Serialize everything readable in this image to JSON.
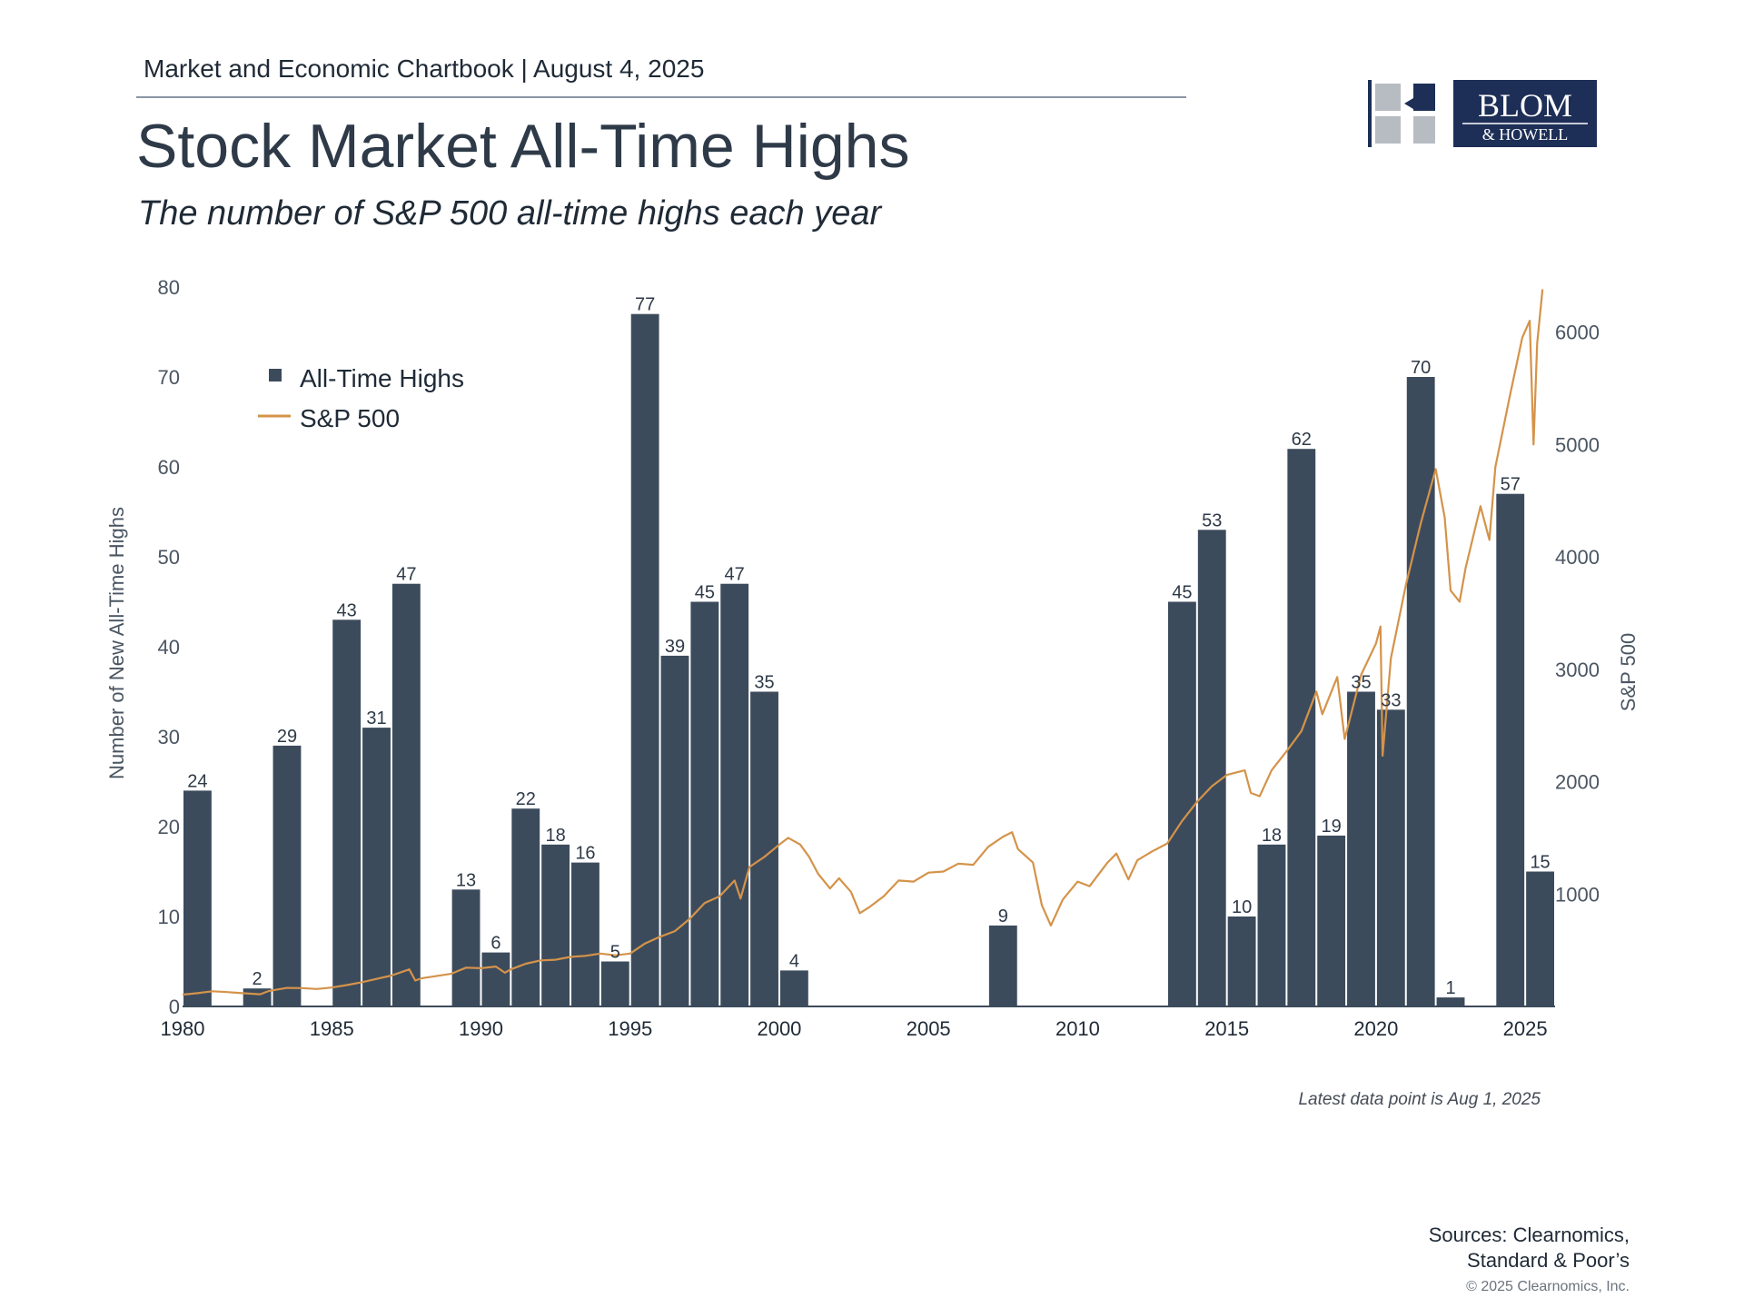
{
  "header": {
    "kicker": "Market and Economic Chartbook | August 4, 2025",
    "title": "Stock Market All-Time Highs",
    "subtitle": "The number of S&P 500 all-time highs each year"
  },
  "logo": {
    "line1": "BLOM",
    "line2": "& HOWELL",
    "navy": "#1d2f57",
    "gray": "#b7bcc2"
  },
  "colors": {
    "bars": "#3c4b5c",
    "line": "#d4934a",
    "axis_text": "#4a5562"
  },
  "chart_data": {
    "type": "bar",
    "legend": {
      "placement": "top-left",
      "entries": [
        "All-Time Highs",
        "S&P 500"
      ]
    },
    "y_left": {
      "label": "Number of New All-Time Highs",
      "range": [
        0,
        80
      ],
      "ticks": [
        "0",
        "10",
        "20",
        "30",
        "40",
        "50",
        "60",
        "70",
        "80"
      ]
    },
    "y_right": {
      "label": "S&P 500",
      "range": [
        0,
        6400
      ],
      "ticks": [
        "1000",
        "2000",
        "3000",
        "4000",
        "5000",
        "6000"
      ]
    },
    "x_axis": {
      "ticks": [
        "1980",
        "1985",
        "1990",
        "1995",
        "2000",
        "2005",
        "2010",
        "2015",
        "2020",
        "2025"
      ]
    },
    "series": [
      {
        "name": "All-Time Highs",
        "type": "bar",
        "axis": "left",
        "x": [
          1980,
          1981,
          1982,
          1983,
          1984,
          1985,
          1986,
          1987,
          1988,
          1989,
          1990,
          1991,
          1992,
          1993,
          1994,
          1995,
          1996,
          1997,
          1998,
          1999,
          2000,
          2001,
          2002,
          2003,
          2004,
          2005,
          2006,
          2007,
          2008,
          2009,
          2010,
          2011,
          2012,
          2013,
          2014,
          2015,
          2016,
          2017,
          2018,
          2019,
          2020,
          2021,
          2022,
          2023,
          2024,
          2025
        ],
        "values": [
          24,
          0,
          2,
          29,
          0,
          43,
          31,
          47,
          0,
          13,
          6,
          22,
          18,
          16,
          5,
          77,
          39,
          45,
          47,
          35,
          4,
          0,
          0,
          0,
          0,
          0,
          0,
          9,
          0,
          0,
          0,
          0,
          0,
          45,
          53,
          10,
          18,
          62,
          19,
          35,
          33,
          70,
          1,
          0,
          57,
          15
        ]
      },
      {
        "name": "S&P 500",
        "type": "line",
        "axis": "right",
        "points": [
          [
            1980.0,
            105
          ],
          [
            1980.5,
            118
          ],
          [
            1981.0,
            135
          ],
          [
            1981.5,
            128
          ],
          [
            1982.0,
            118
          ],
          [
            1982.6,
            108
          ],
          [
            1982.9,
            138
          ],
          [
            1983.5,
            165
          ],
          [
            1984.0,
            163
          ],
          [
            1984.5,
            155
          ],
          [
            1985.0,
            168
          ],
          [
            1985.5,
            190
          ],
          [
            1986.0,
            215
          ],
          [
            1986.5,
            245
          ],
          [
            1987.0,
            275
          ],
          [
            1987.6,
            330
          ],
          [
            1987.8,
            230
          ],
          [
            1988.0,
            250
          ],
          [
            1988.5,
            270
          ],
          [
            1989.0,
            290
          ],
          [
            1989.5,
            345
          ],
          [
            1990.0,
            340
          ],
          [
            1990.5,
            355
          ],
          [
            1990.8,
            300
          ],
          [
            1991.0,
            330
          ],
          [
            1991.5,
            380
          ],
          [
            1992.0,
            410
          ],
          [
            1992.5,
            415
          ],
          [
            1993.0,
            440
          ],
          [
            1993.5,
            450
          ],
          [
            1994.0,
            470
          ],
          [
            1994.5,
            455
          ],
          [
            1995.0,
            470
          ],
          [
            1995.5,
            560
          ],
          [
            1996.0,
            620
          ],
          [
            1996.5,
            670
          ],
          [
            1997.0,
            780
          ],
          [
            1997.5,
            920
          ],
          [
            1998.0,
            980
          ],
          [
            1998.5,
            1120
          ],
          [
            1998.7,
            960
          ],
          [
            1999.0,
            1240
          ],
          [
            1999.5,
            1330
          ],
          [
            2000.0,
            1440
          ],
          [
            2000.3,
            1500
          ],
          [
            2000.7,
            1440
          ],
          [
            2001.0,
            1330
          ],
          [
            2001.3,
            1180
          ],
          [
            2001.7,
            1050
          ],
          [
            2002.0,
            1140
          ],
          [
            2002.4,
            1020
          ],
          [
            2002.7,
            830
          ],
          [
            2003.0,
            880
          ],
          [
            2003.5,
            980
          ],
          [
            2004.0,
            1120
          ],
          [
            2004.5,
            1110
          ],
          [
            2005.0,
            1190
          ],
          [
            2005.5,
            1200
          ],
          [
            2006.0,
            1270
          ],
          [
            2006.5,
            1260
          ],
          [
            2007.0,
            1420
          ],
          [
            2007.5,
            1510
          ],
          [
            2007.8,
            1550
          ],
          [
            2008.0,
            1400
          ],
          [
            2008.5,
            1280
          ],
          [
            2008.8,
            900
          ],
          [
            2009.1,
            720
          ],
          [
            2009.5,
            950
          ],
          [
            2010.0,
            1110
          ],
          [
            2010.4,
            1070
          ],
          [
            2011.0,
            1280
          ],
          [
            2011.3,
            1360
          ],
          [
            2011.7,
            1130
          ],
          [
            2012.0,
            1300
          ],
          [
            2012.5,
            1380
          ],
          [
            2013.0,
            1450
          ],
          [
            2013.5,
            1650
          ],
          [
            2014.0,
            1820
          ],
          [
            2014.5,
            1960
          ],
          [
            2015.0,
            2060
          ],
          [
            2015.6,
            2100
          ],
          [
            2015.8,
            1900
          ],
          [
            2016.1,
            1870
          ],
          [
            2016.5,
            2100
          ],
          [
            2017.0,
            2270
          ],
          [
            2017.5,
            2450
          ],
          [
            2018.0,
            2800
          ],
          [
            2018.2,
            2600
          ],
          [
            2018.7,
            2930
          ],
          [
            2018.95,
            2380
          ],
          [
            2019.5,
            2950
          ],
          [
            2020.0,
            3230
          ],
          [
            2020.15,
            3380
          ],
          [
            2020.22,
            2230
          ],
          [
            2020.5,
            3100
          ],
          [
            2021.0,
            3750
          ],
          [
            2021.5,
            4300
          ],
          [
            2022.0,
            4780
          ],
          [
            2022.3,
            4350
          ],
          [
            2022.5,
            3700
          ],
          [
            2022.8,
            3600
          ],
          [
            2023.0,
            3900
          ],
          [
            2023.5,
            4450
          ],
          [
            2023.8,
            4150
          ],
          [
            2024.0,
            4800
          ],
          [
            2024.5,
            5450
          ],
          [
            2024.9,
            5950
          ],
          [
            2025.15,
            6100
          ],
          [
            2025.28,
            5000
          ],
          [
            2025.4,
            5900
          ],
          [
            2025.58,
            6380
          ]
        ]
      }
    ],
    "data_labels": "values shown above each non-zero bar"
  },
  "footer": {
    "latest": "Latest data point is Aug 1, 2025",
    "sources_line1": "Sources: Clearnomics,",
    "sources_line2": "Standard & Poor’s",
    "copyright": "© 2025 Clearnomics, Inc."
  }
}
